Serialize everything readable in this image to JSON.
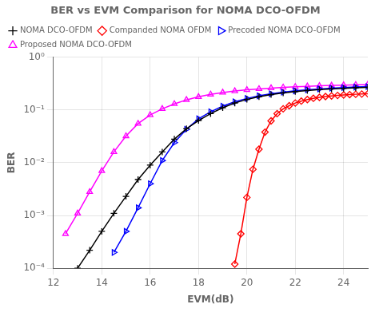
{
  "chart_data": {
    "type": "line",
    "title": "BER vs EVM Comparison for NOMA DCO-OFDM",
    "xlabel": "EVM(dB)",
    "ylabel": "BER",
    "log": "y",
    "grid": true,
    "legend": "upper left",
    "xlim": [
      12,
      25
    ],
    "ylim": [
      0.0001,
      1
    ],
    "xticks": [
      12,
      14,
      16,
      18,
      20,
      22,
      24
    ],
    "yticks": [
      {
        "value": 0.0001,
        "label": "10⁻⁴"
      },
      {
        "value": 0.001,
        "label": "10⁻³"
      },
      {
        "value": 0.01,
        "label": "10⁻²"
      },
      {
        "value": 0.1,
        "label": "10⁻¹"
      },
      {
        "value": 1,
        "label": "10⁰"
      }
    ],
    "series": [
      {
        "name": "NOMA DCO-OFDM",
        "color": "black",
        "marker": "plus",
        "x": [
          13.0,
          13.5,
          14.0,
          14.5,
          15.0,
          15.5,
          16.0,
          16.5,
          17.0,
          17.5,
          18.0,
          18.5,
          19.0,
          19.5,
          20.0,
          20.5,
          21.0,
          21.5,
          22.0,
          22.5,
          23.0,
          23.5,
          24.0,
          24.5,
          25.0
        ],
        "values": [
          0.0001,
          0.00022,
          0.0005,
          0.0011,
          0.0023,
          0.0048,
          0.009,
          0.016,
          0.028,
          0.044,
          0.063,
          0.085,
          0.11,
          0.135,
          0.158,
          0.178,
          0.195,
          0.21,
          0.222,
          0.233,
          0.242,
          0.25,
          0.257,
          0.263,
          0.268
        ]
      },
      {
        "name": "Companded NOMA OFDM",
        "color": "red",
        "marker": "diamond",
        "x": [
          19.5,
          19.75,
          20.0,
          20.25,
          20.5,
          20.75,
          21.0,
          21.25,
          21.5,
          21.75,
          22.0,
          22.25,
          22.5,
          22.75,
          23.0,
          23.25,
          23.5,
          23.75,
          24.0,
          24.25,
          24.5,
          24.75,
          25.0
        ],
        "values": [
          0.00012,
          0.00045,
          0.0022,
          0.0075,
          0.018,
          0.038,
          0.062,
          0.085,
          0.105,
          0.12,
          0.135,
          0.147,
          0.157,
          0.166,
          0.173,
          0.179,
          0.184,
          0.188,
          0.192,
          0.195,
          0.198,
          0.2,
          0.202
        ]
      },
      {
        "name": "Precoded NOMA DCO-OFDM",
        "color": "blue",
        "marker": "triangle-right",
        "x": [
          14.5,
          15.0,
          15.5,
          16.0,
          16.5,
          17.0,
          17.5,
          18.0,
          18.5,
          19.0,
          19.5,
          20.0,
          20.5,
          21.0,
          21.5,
          22.0,
          22.5,
          23.0,
          23.5,
          24.0,
          24.5,
          25.0
        ],
        "values": [
          0.0002,
          0.0005,
          0.0014,
          0.004,
          0.011,
          0.024,
          0.043,
          0.068,
          0.092,
          0.118,
          0.143,
          0.165,
          0.185,
          0.202,
          0.217,
          0.23,
          0.241,
          0.25,
          0.258,
          0.265,
          0.271,
          0.277
        ]
      },
      {
        "name": "Proposed NOMA DCO-OFDM",
        "color": "magenta",
        "marker": "triangle-up",
        "x": [
          12.5,
          13.0,
          13.5,
          14.0,
          14.5,
          15.0,
          15.5,
          16.0,
          16.5,
          17.0,
          17.5,
          18.0,
          18.5,
          19.0,
          19.5,
          20.0,
          20.5,
          21.0,
          21.5,
          22.0,
          22.5,
          23.0,
          23.5,
          24.0,
          24.5,
          25.0
        ],
        "values": [
          0.00045,
          0.0011,
          0.0028,
          0.007,
          0.016,
          0.032,
          0.055,
          0.08,
          0.105,
          0.13,
          0.155,
          0.177,
          0.197,
          0.214,
          0.228,
          0.24,
          0.25,
          0.259,
          0.267,
          0.274,
          0.28,
          0.286,
          0.291,
          0.295,
          0.299,
          0.303
        ]
      }
    ]
  }
}
